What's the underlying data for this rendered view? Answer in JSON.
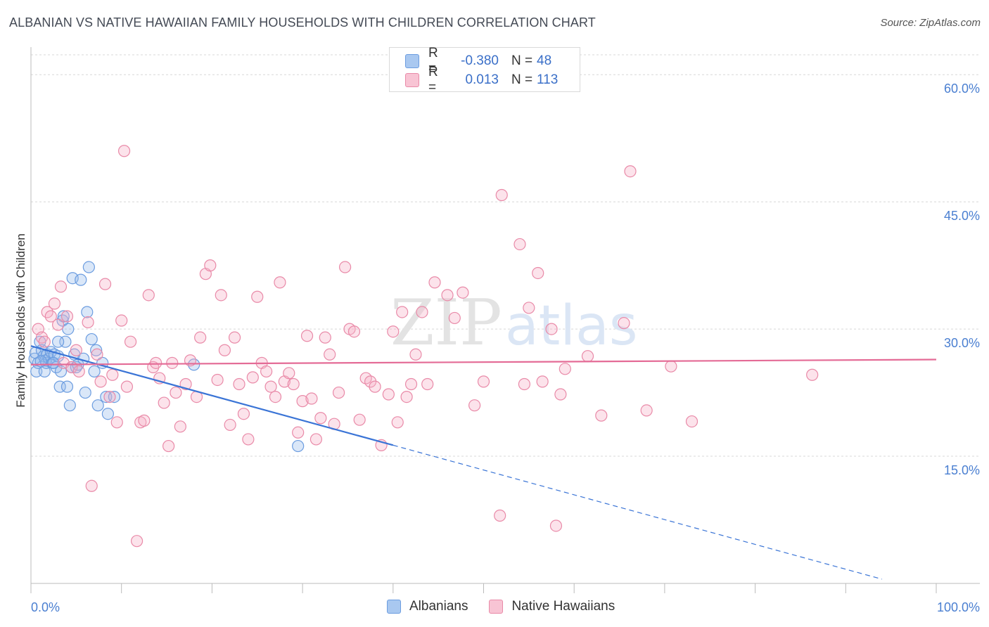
{
  "title": "ALBANIAN VS NATIVE HAWAIIAN FAMILY HOUSEHOLDS WITH CHILDREN CORRELATION CHART",
  "source": "Source: ZipAtlas.com",
  "watermark": "ZIPatlas",
  "legend": {
    "rows": [
      {
        "r_label": "R =",
        "r_value": "-0.380",
        "n_label": "N =",
        "n_value": "48",
        "color": "#a9c8f0",
        "border": "#6c9de0"
      },
      {
        "r_label": "R =",
        "r_value": "0.013",
        "n_label": "N =",
        "n_value": "113",
        "color": "#f8c4d4",
        "border": "#e98aa8"
      }
    ]
  },
  "bottom_legend": [
    "Albanians",
    "Native Hawaiians"
  ],
  "chart_data": {
    "type": "scatter",
    "xlabel": "",
    "ylabel": "Family Households with Children",
    "xlim": [
      0,
      100
    ],
    "ylim": [
      0,
      63
    ],
    "x_tick_labels": [
      "0.0%",
      "100.0%"
    ],
    "y_ticks": [
      15,
      30,
      45,
      60
    ],
    "y_tick_labels": [
      "15.0%",
      "30.0%",
      "45.0%",
      "60.0%"
    ],
    "grid": true,
    "legend_position": "top-center",
    "series": [
      {
        "name": "Albanians",
        "color": "#6c9de0",
        "fill": "rgba(150,185,235,0.35)",
        "trend": {
          "x0": 0,
          "y0": 28.0,
          "x1": 40,
          "y1": 16.3,
          "dash_to_x": 94
        },
        "points": [
          [
            0.4,
            26.5
          ],
          [
            0.5,
            27.2
          ],
          [
            0.6,
            25.0
          ],
          [
            0.8,
            26.0
          ],
          [
            1.0,
            28.5
          ],
          [
            1.2,
            27.5
          ],
          [
            1.4,
            26.8
          ],
          [
            1.5,
            25.0
          ],
          [
            1.6,
            26.3
          ],
          [
            1.7,
            26.0
          ],
          [
            1.8,
            27.0
          ],
          [
            2.0,
            26.5
          ],
          [
            2.2,
            27.3
          ],
          [
            2.4,
            26.0
          ],
          [
            2.6,
            27.0
          ],
          [
            2.8,
            25.5
          ],
          [
            3.0,
            26.8
          ],
          [
            3.2,
            23.2
          ],
          [
            3.3,
            25.0
          ],
          [
            3.5,
            31.0
          ],
          [
            3.6,
            31.5
          ],
          [
            3.8,
            28.5
          ],
          [
            4.0,
            23.2
          ],
          [
            4.1,
            30.0
          ],
          [
            4.3,
            21.0
          ],
          [
            4.5,
            25.5
          ],
          [
            4.6,
            36.0
          ],
          [
            4.8,
            27.0
          ],
          [
            5.0,
            25.5
          ],
          [
            5.2,
            25.8
          ],
          [
            5.5,
            35.8
          ],
          [
            5.8,
            26.5
          ],
          [
            6.0,
            22.5
          ],
          [
            6.2,
            32.0
          ],
          [
            6.4,
            37.3
          ],
          [
            6.7,
            28.8
          ],
          [
            7.0,
            25.0
          ],
          [
            7.2,
            27.5
          ],
          [
            7.4,
            21.0
          ],
          [
            7.9,
            26.0
          ],
          [
            8.3,
            22.0
          ],
          [
            8.5,
            20.0
          ],
          [
            9.2,
            22.0
          ],
          [
            18.0,
            25.8
          ],
          [
            29.5,
            16.2
          ],
          [
            2.5,
            26.0
          ],
          [
            1.1,
            26.2
          ],
          [
            3.0,
            28.5
          ]
        ]
      },
      {
        "name": "Native Hawaiians",
        "color": "#e98aa8",
        "fill": "rgba(245,175,198,0.35)",
        "trend": {
          "x0": 0,
          "y0": 25.8,
          "x1": 100,
          "y1": 26.4
        },
        "points": [
          [
            0.8,
            30.0
          ],
          [
            1.2,
            29.0
          ],
          [
            1.5,
            28.5
          ],
          [
            1.8,
            32.0
          ],
          [
            2.2,
            31.5
          ],
          [
            2.6,
            33.0
          ],
          [
            3.0,
            30.5
          ],
          [
            3.3,
            35.0
          ],
          [
            3.6,
            26.0
          ],
          [
            4.0,
            31.5
          ],
          [
            4.5,
            25.5
          ],
          [
            5.0,
            27.5
          ],
          [
            5.3,
            25.0
          ],
          [
            6.3,
            30.8
          ],
          [
            6.7,
            11.5
          ],
          [
            7.3,
            27.0
          ],
          [
            7.7,
            23.8
          ],
          [
            8.2,
            35.3
          ],
          [
            8.7,
            22.0
          ],
          [
            9.0,
            24.6
          ],
          [
            9.5,
            19.0
          ],
          [
            10.0,
            31.0
          ],
          [
            10.3,
            51.0
          ],
          [
            10.6,
            23.2
          ],
          [
            11.0,
            28.5
          ],
          [
            11.7,
            5.0
          ],
          [
            12.1,
            19.0
          ],
          [
            12.5,
            19.2
          ],
          [
            13.0,
            34.0
          ],
          [
            13.5,
            25.5
          ],
          [
            13.8,
            26.0
          ],
          [
            14.2,
            24.2
          ],
          [
            14.7,
            21.3
          ],
          [
            15.2,
            16.2
          ],
          [
            15.6,
            26.0
          ],
          [
            16.0,
            22.5
          ],
          [
            16.5,
            18.5
          ],
          [
            17.1,
            23.5
          ],
          [
            17.6,
            26.3
          ],
          [
            18.3,
            22.0
          ],
          [
            18.7,
            29.0
          ],
          [
            19.3,
            36.5
          ],
          [
            19.8,
            37.5
          ],
          [
            20.6,
            24.0
          ],
          [
            21.0,
            34.0
          ],
          [
            21.4,
            27.5
          ],
          [
            22.0,
            18.7
          ],
          [
            22.5,
            29.0
          ],
          [
            23.0,
            23.5
          ],
          [
            23.5,
            20.0
          ],
          [
            24.0,
            17.0
          ],
          [
            24.5,
            24.3
          ],
          [
            25.0,
            33.8
          ],
          [
            25.5,
            26.0
          ],
          [
            26.0,
            25.0
          ],
          [
            26.5,
            23.2
          ],
          [
            27.0,
            22.0
          ],
          [
            27.5,
            35.5
          ],
          [
            28.0,
            23.8
          ],
          [
            28.5,
            24.8
          ],
          [
            29.0,
            23.5
          ],
          [
            29.5,
            17.8
          ],
          [
            30.0,
            21.5
          ],
          [
            30.5,
            29.2
          ],
          [
            31.0,
            21.8
          ],
          [
            31.5,
            17.0
          ],
          [
            32.0,
            19.5
          ],
          [
            32.5,
            29.0
          ],
          [
            33.0,
            27.0
          ],
          [
            33.5,
            18.8
          ],
          [
            34.0,
            22.5
          ],
          [
            34.7,
            37.3
          ],
          [
            35.2,
            30.0
          ],
          [
            35.7,
            29.7
          ],
          [
            36.3,
            19.3
          ],
          [
            37.0,
            24.2
          ],
          [
            37.5,
            23.8
          ],
          [
            38.0,
            23.2
          ],
          [
            38.7,
            16.3
          ],
          [
            39.5,
            22.3
          ],
          [
            40.0,
            29.7
          ],
          [
            40.5,
            19.0
          ],
          [
            41.0,
            32.0
          ],
          [
            41.5,
            22.0
          ],
          [
            42.0,
            23.5
          ],
          [
            42.5,
            27.0
          ],
          [
            43.2,
            32.0
          ],
          [
            43.8,
            23.5
          ],
          [
            44.6,
            35.5
          ],
          [
            46.0,
            34.0
          ],
          [
            46.8,
            31.3
          ],
          [
            47.7,
            34.3
          ],
          [
            49.0,
            21.0
          ],
          [
            50.0,
            23.8
          ],
          [
            51.8,
            8.0
          ],
          [
            52.0,
            45.8
          ],
          [
            54.0,
            40.0
          ],
          [
            54.5,
            23.5
          ],
          [
            55.0,
            32.5
          ],
          [
            56.0,
            36.6
          ],
          [
            56.5,
            23.8
          ],
          [
            57.5,
            30.0
          ],
          [
            58.0,
            6.8
          ],
          [
            58.5,
            22.3
          ],
          [
            59.0,
            25.3
          ],
          [
            61.5,
            26.8
          ],
          [
            63.0,
            19.8
          ],
          [
            65.5,
            30.7
          ],
          [
            66.2,
            48.6
          ],
          [
            68.0,
            20.4
          ],
          [
            70.7,
            25.6
          ],
          [
            73.0,
            19.1
          ],
          [
            86.3,
            24.6
          ]
        ]
      }
    ]
  }
}
